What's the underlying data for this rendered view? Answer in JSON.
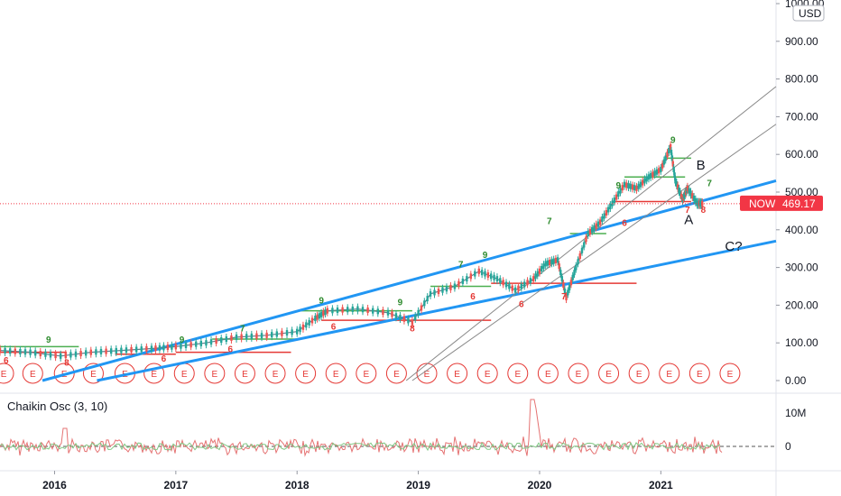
{
  "currency": "USD",
  "now_label": "NOW",
  "now_price": "469.17",
  "indicator_label": "Chaikin Osc (3, 10)",
  "earnings_marker": "E",
  "colors": {
    "candle_up": "#26a69a",
    "candle_down": "#ef5350",
    "trend_channel": "#2196f3",
    "parallel_channel": "#888888",
    "support_red": "#e53935",
    "resistance_green": "#4caf50",
    "now_badge": "#f23645",
    "oscillator": "#e57373"
  },
  "chart_data": [
    {
      "type": "line",
      "title": "",
      "x_ticks": [
        "2016",
        "2017",
        "2018",
        "2019",
        "2020",
        "2021"
      ],
      "y_ticks": [
        "0.00",
        "100.00",
        "200.00",
        "300.00",
        "400.00",
        "500.00",
        "600.00",
        "700.00",
        "800.00",
        "900.00",
        "1000.00"
      ],
      "ylim": [
        0,
        1000
      ],
      "xlim": [
        2015.55,
        2021.95
      ],
      "price_x": [
        2015.55,
        2015.8,
        2016.05,
        2016.3,
        2016.55,
        2016.8,
        2017.0,
        2017.25,
        2017.5,
        2017.75,
        2018.0,
        2018.15,
        2018.25,
        2018.5,
        2018.75,
        2018.95,
        2019.1,
        2019.3,
        2019.5,
        2019.65,
        2019.8,
        2019.95,
        2020.05,
        2020.15,
        2020.22,
        2020.3,
        2020.4,
        2020.5,
        2020.6,
        2020.7,
        2020.8,
        2020.9,
        2021.0,
        2021.08,
        2021.12,
        2021.18,
        2021.22,
        2021.3,
        2021.35
      ],
      "price_y": [
        80,
        75,
        65,
        75,
        80,
        85,
        90,
        100,
        115,
        120,
        130,
        165,
        185,
        190,
        180,
        155,
        230,
        250,
        290,
        270,
        240,
        270,
        310,
        320,
        220,
        300,
        390,
        420,
        470,
        520,
        510,
        540,
        560,
        620,
        530,
        480,
        510,
        470,
        469
      ],
      "oscillator_levels": [
        "10M",
        "0"
      ],
      "earnings_x": [
        2015.58,
        2015.82,
        2016.08,
        2016.32,
        2016.58,
        2016.82,
        2017.07,
        2017.32,
        2017.57,
        2017.82,
        2018.07,
        2018.32,
        2018.57,
        2018.82,
        2019.07,
        2019.32,
        2019.57,
        2019.82,
        2020.07,
        2020.32,
        2020.57,
        2020.82,
        2021.07,
        2021.32,
        2021.57
      ],
      "channel_lines": [
        {
          "from": [
            2015.9,
            0
          ],
          "to": [
            2021.95,
            530
          ],
          "role": "upper-trend"
        },
        {
          "from": [
            2016.35,
            0
          ],
          "to": [
            2021.95,
            370
          ],
          "role": "lower-trend"
        },
        {
          "from": [
            2018.9,
            0
          ],
          "to": [
            2021.95,
            780
          ],
          "role": "parallel-upper"
        },
        {
          "from": [
            2018.95,
            0
          ],
          "to": [
            2021.95,
            680
          ],
          "role": "parallel-lower"
        }
      ],
      "horizontal_levels": [
        {
          "from": 2015.55,
          "to": 2016.1,
          "y": 75,
          "color": "red"
        },
        {
          "from": 2016.5,
          "to": 2017.0,
          "y": 70,
          "color": "red"
        },
        {
          "from": 2017.0,
          "to": 2017.95,
          "y": 75,
          "color": "red"
        },
        {
          "from": 2018.2,
          "to": 2019.6,
          "y": 160,
          "color": "red"
        },
        {
          "from": 2019.6,
          "to": 2020.8,
          "y": 258,
          "color": "red"
        },
        {
          "from": 2020.6,
          "to": 2021.25,
          "y": 475,
          "color": "red"
        },
        {
          "from": 2015.55,
          "to": 2016.2,
          "y": 90,
          "color": "green"
        },
        {
          "from": 2017.3,
          "to": 2018.0,
          "y": 110,
          "color": "green"
        },
        {
          "from": 2018.0,
          "to": 2018.95,
          "y": 185,
          "color": "green"
        },
        {
          "from": 2019.1,
          "to": 2019.6,
          "y": 250,
          "color": "green"
        },
        {
          "from": 2020.25,
          "to": 2020.55,
          "y": 390,
          "color": "green"
        },
        {
          "from": 2020.7,
          "to": 2021.2,
          "y": 540,
          "color": "green"
        },
        {
          "from": 2021.05,
          "to": 2021.25,
          "y": 590,
          "color": "green"
        }
      ],
      "annotations": [
        {
          "text": "A",
          "x": 2021.23,
          "y": 415
        },
        {
          "text": "B",
          "x": 2021.33,
          "y": 560
        },
        {
          "text": "C?",
          "x": 2021.6,
          "y": 345
        }
      ],
      "sequential_marks": [
        {
          "t": "9",
          "x": 2015.95,
          "y": 100,
          "c": "g"
        },
        {
          "t": "9",
          "x": 2017.05,
          "y": 100,
          "c": "g"
        },
        {
          "t": "7",
          "x": 2017.55,
          "y": 130,
          "c": "g"
        },
        {
          "t": "9",
          "x": 2018.2,
          "y": 205,
          "c": "g"
        },
        {
          "t": "9",
          "x": 2018.85,
          "y": 200,
          "c": "g"
        },
        {
          "t": "7",
          "x": 2019.35,
          "y": 300,
          "c": "g"
        },
        {
          "t": "9",
          "x": 2019.55,
          "y": 325,
          "c": "g"
        },
        {
          "t": "7",
          "x": 2020.08,
          "y": 415,
          "c": "g"
        },
        {
          "t": "9",
          "x": 2020.65,
          "y": 510,
          "c": "g"
        },
        {
          "t": "9",
          "x": 2021.1,
          "y": 630,
          "c": "g"
        },
        {
          "t": "7",
          "x": 2021.4,
          "y": 515,
          "c": "g"
        },
        {
          "t": "6",
          "x": 2015.6,
          "y": 45,
          "c": "r"
        },
        {
          "t": "8",
          "x": 2016.1,
          "y": 40,
          "c": "r"
        },
        {
          "t": "6",
          "x": 2016.9,
          "y": 50,
          "c": "r"
        },
        {
          "t": "6",
          "x": 2017.45,
          "y": 75,
          "c": "r"
        },
        {
          "t": "6",
          "x": 2018.3,
          "y": 135,
          "c": "r"
        },
        {
          "t": "8",
          "x": 2018.95,
          "y": 130,
          "c": "r"
        },
        {
          "t": "6",
          "x": 2019.45,
          "y": 215,
          "c": "r"
        },
        {
          "t": "6",
          "x": 2019.85,
          "y": 195,
          "c": "r"
        },
        {
          "t": "7",
          "x": 2020.2,
          "y": 215,
          "c": "r"
        },
        {
          "t": "6",
          "x": 2020.7,
          "y": 410,
          "c": "r"
        },
        {
          "t": "7",
          "x": 2021.22,
          "y": 445,
          "c": "r"
        },
        {
          "t": "8",
          "x": 2021.35,
          "y": 445,
          "c": "r"
        }
      ]
    }
  ]
}
